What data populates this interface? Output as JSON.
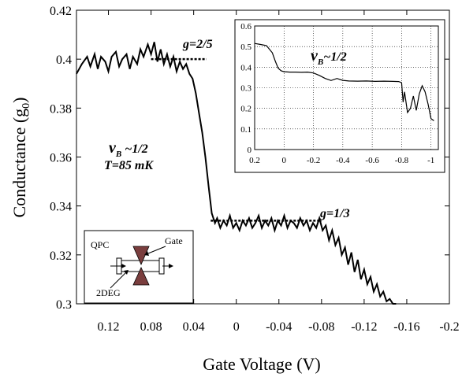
{
  "chart_data": [
    {
      "type": "line",
      "xlabel": "Gate Voltage (V)",
      "ylabel_main": "Conductance (g",
      "ylabel_sub": "0",
      "ylabel_end": ")",
      "xlim": [
        0.15,
        -0.2
      ],
      "ylim": [
        0.3,
        0.42
      ],
      "grid": false,
      "x_ticks": [
        0.12,
        0.08,
        0.04,
        0,
        -0.04,
        -0.08,
        -0.12,
        -0.16,
        -0.2
      ],
      "x_tick_labels": [
        "0.12",
        "0.08",
        "0.04",
        "0",
        "-0.04",
        "-0.08",
        "-0.12",
        "-0.16",
        "-0.2"
      ],
      "y_ticks": [
        0.3,
        0.32,
        0.34,
        0.36,
        0.38,
        0.4,
        0.42
      ],
      "y_tick_labels": [
        "0.3",
        "0.32",
        "0.34",
        "0.36",
        "0.38",
        "0.4",
        "0.42"
      ],
      "series": [
        {
          "x": [
            0.15,
            0.145,
            0.14,
            0.137,
            0.133,
            0.13,
            0.127,
            0.123,
            0.12,
            0.117,
            0.113,
            0.11,
            0.107,
            0.103,
            0.1,
            0.097,
            0.093,
            0.09,
            0.087,
            0.083,
            0.08,
            0.077,
            0.074,
            0.071,
            0.068,
            0.065,
            0.062,
            0.059,
            0.056,
            0.053,
            0.05,
            0.047,
            0.044,
            0.041,
            0.038,
            0.035,
            0.032,
            0.029,
            0.026,
            0.023,
            0.02,
            0.018,
            0.015,
            0.012,
            0.009,
            0.006,
            0.003,
            0.0,
            -0.003,
            -0.006,
            -0.009,
            -0.012,
            -0.015,
            -0.018,
            -0.021,
            -0.024,
            -0.027,
            -0.03,
            -0.033,
            -0.036,
            -0.039,
            -0.042,
            -0.045,
            -0.048,
            -0.051,
            -0.054,
            -0.057,
            -0.06,
            -0.063,
            -0.066,
            -0.069,
            -0.072,
            -0.075,
            -0.078,
            -0.081,
            -0.084,
            -0.087,
            -0.09,
            -0.093,
            -0.096,
            -0.099,
            -0.102,
            -0.105,
            -0.108,
            -0.111,
            -0.114,
            -0.117,
            -0.12,
            -0.123,
            -0.126,
            -0.129,
            -0.132,
            -0.135,
            -0.138,
            -0.141,
            -0.144,
            -0.147,
            -0.15
          ],
          "y": [
            0.394,
            0.398,
            0.401,
            0.397,
            0.402,
            0.396,
            0.401,
            0.399,
            0.395,
            0.401,
            0.403,
            0.397,
            0.4,
            0.402,
            0.396,
            0.401,
            0.398,
            0.404,
            0.401,
            0.406,
            0.402,
            0.407,
            0.399,
            0.404,
            0.398,
            0.402,
            0.397,
            0.401,
            0.395,
            0.399,
            0.396,
            0.398,
            0.394,
            0.392,
            0.386,
            0.378,
            0.37,
            0.36,
            0.348,
            0.337,
            0.333,
            0.335,
            0.331,
            0.334,
            0.332,
            0.336,
            0.331,
            0.333,
            0.33,
            0.334,
            0.332,
            0.335,
            0.331,
            0.333,
            0.336,
            0.331,
            0.334,
            0.332,
            0.335,
            0.33,
            0.334,
            0.332,
            0.336,
            0.331,
            0.334,
            0.333,
            0.331,
            0.335,
            0.332,
            0.334,
            0.33,
            0.333,
            0.331,
            0.335,
            0.33,
            0.332,
            0.326,
            0.33,
            0.324,
            0.327,
            0.32,
            0.323,
            0.316,
            0.321,
            0.313,
            0.318,
            0.31,
            0.314,
            0.308,
            0.311,
            0.305,
            0.308,
            0.303,
            0.305,
            0.301,
            0.302,
            0.3,
            0.299
          ]
        }
      ],
      "reference_lines": [
        {
          "label": "g=2/5",
          "y": 0.4,
          "x_from": 0.08,
          "x_to": 0.028
        },
        {
          "label": "g=1/3",
          "y": 0.334,
          "x_from": 0.024,
          "x_to": -0.08
        }
      ],
      "annotations": {
        "nu": "ν",
        "nu_sub": "B",
        "nu_rest": " ~1/2",
        "temperature": "T=85 mK"
      }
    },
    {
      "type": "line",
      "xlim": [
        0.2,
        -1.05
      ],
      "ylim": [
        0,
        0.6
      ],
      "grid": true,
      "x_ticks": [
        0.2,
        0,
        -0.2,
        -0.4,
        -0.6,
        -0.8,
        -1
      ],
      "x_tick_labels": [
        "0.2",
        "0",
        "-0.2",
        "-0.4",
        "-0.6",
        "-0.8",
        "-1"
      ],
      "y_ticks": [
        0,
        0.1,
        0.2,
        0.3,
        0.4,
        0.5,
        0.6
      ],
      "y_tick_labels": [
        "0",
        "0.1",
        "0.2",
        "0.3",
        "0.4",
        "0.5",
        "0.6"
      ],
      "series": [
        {
          "x": [
            0.2,
            0.16,
            0.12,
            0.08,
            0.06,
            0.04,
            0.02,
            0.0,
            -0.04,
            -0.08,
            -0.12,
            -0.16,
            -0.2,
            -0.24,
            -0.28,
            -0.32,
            -0.36,
            -0.4,
            -0.44,
            -0.5,
            -0.56,
            -0.62,
            -0.68,
            -0.74,
            -0.78,
            -0.8,
            -0.81,
            -0.82,
            -0.84,
            -0.86,
            -0.88,
            -0.9,
            -0.92,
            -0.94,
            -0.96,
            -0.98,
            -1.0,
            -1.02
          ],
          "y": [
            0.515,
            0.51,
            0.505,
            0.47,
            0.43,
            0.395,
            0.382,
            0.378,
            0.376,
            0.376,
            0.375,
            0.376,
            0.372,
            0.36,
            0.345,
            0.335,
            0.345,
            0.336,
            0.333,
            0.332,
            0.333,
            0.331,
            0.332,
            0.331,
            0.33,
            0.325,
            0.23,
            0.28,
            0.18,
            0.2,
            0.26,
            0.19,
            0.27,
            0.31,
            0.28,
            0.22,
            0.15,
            0.14
          ]
        }
      ],
      "annotations": {
        "nu": "ν",
        "nu_sub": "B",
        "nu_rest": "~1/2"
      }
    }
  ],
  "schematic": {
    "qpc_label": "QPC",
    "gate_label": "Gate",
    "twodeg_label": "2DEG"
  }
}
